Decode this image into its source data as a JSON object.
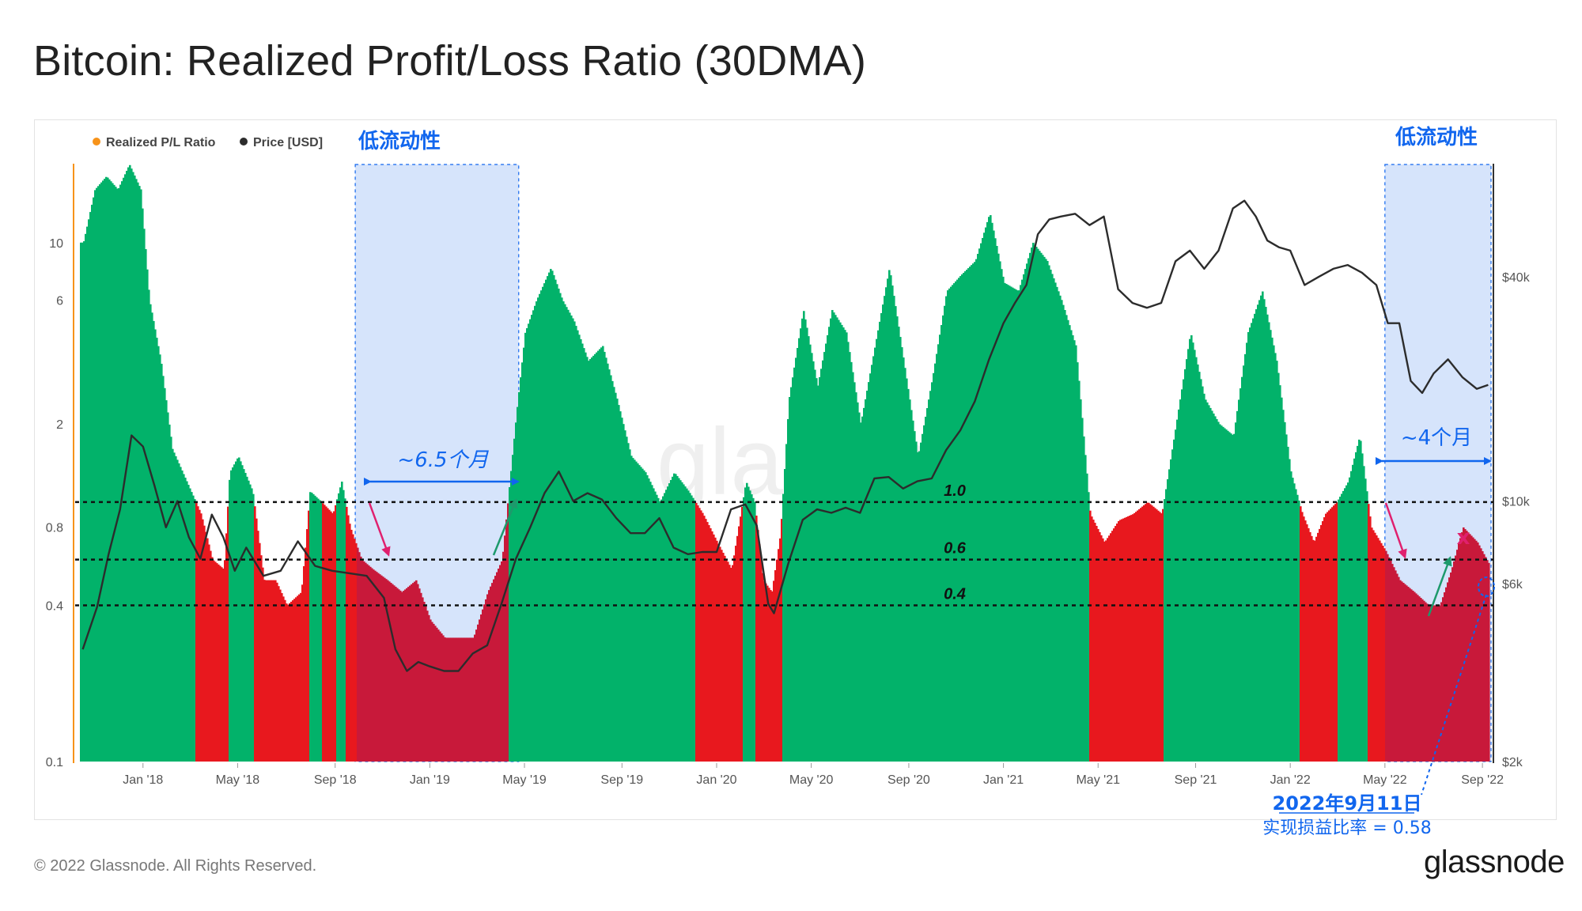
{
  "title": "Bitcoin: Realized Profit/Loss Ratio (30DMA)",
  "footer": {
    "copyright": "© 2022 Glassnode. All Rights Reserved.",
    "brand": "glassnode"
  },
  "colors": {
    "profit": "#02b26a",
    "loss_low": "#e8181e",
    "loss_window": "#c8193a",
    "price": "#2c2c2c",
    "window": "#d6e4fb",
    "annotation": "#1166ee",
    "legend_ratio": "#f7931a"
  },
  "chart_data": {
    "type": "area",
    "title": "Bitcoin: Realized Profit/Loss Ratio (30DMA)",
    "legend": [
      {
        "name": "Realized P/L Ratio",
        "color": "#f7931a"
      },
      {
        "name": "Price [USD]",
        "color": "#2c2c2c"
      }
    ],
    "x_ticks": [
      "Jan '18",
      "May '18",
      "Sep '18",
      "Jan '19",
      "May '19",
      "Sep '19",
      "Jan '20",
      "May '20",
      "Sep '20",
      "Jan '21",
      "May '21",
      "Sep '21",
      "Jan '22",
      "May '22",
      "Sep '22"
    ],
    "x_range": [
      "2017-10",
      "2022-09"
    ],
    "left_axis": {
      "scale": "log",
      "ticks": [
        "0.1",
        "0.4",
        "0.8",
        "2",
        "6",
        "10"
      ],
      "ylim": [
        0.1,
        20
      ]
    },
    "right_axis": {
      "scale": "log",
      "ticks": [
        "$2k",
        "$6k",
        "$10k",
        "$40k"
      ],
      "ylim": [
        2000,
        80000
      ]
    },
    "reference_lines": [
      {
        "value": 1.0,
        "label": "1.0"
      },
      {
        "value": 0.6,
        "label": "0.6"
      },
      {
        "value": 0.4,
        "label": "0.4"
      }
    ],
    "series": [
      {
        "name": "Realized P/L Ratio",
        "t": [
          2017.79,
          2017.83,
          2017.87,
          2017.91,
          2017.95,
          2017.99,
          2018.02,
          2018.06,
          2018.1,
          2018.15,
          2018.2,
          2018.24,
          2018.28,
          2018.3,
          2018.33,
          2018.38,
          2018.42,
          2018.46,
          2018.5,
          2018.55,
          2018.58,
          2018.62,
          2018.66,
          2018.69,
          2018.72,
          2018.76,
          2018.8,
          2018.85,
          2018.9,
          2018.95,
          2019.0,
          2019.05,
          2019.1,
          2019.15,
          2019.2,
          2019.25,
          2019.3,
          2019.33,
          2019.37,
          2019.42,
          2019.46,
          2019.5,
          2019.55,
          2019.6,
          2019.65,
          2019.7,
          2019.75,
          2019.8,
          2019.85,
          2019.9,
          2019.95,
          2020.0,
          2020.05,
          2020.1,
          2020.13,
          2020.16,
          2020.19,
          2020.22,
          2020.25,
          2020.3,
          2020.35,
          2020.4,
          2020.45,
          2020.5,
          2020.55,
          2020.6,
          2020.65,
          2020.7,
          2020.75,
          2020.8,
          2020.85,
          2020.9,
          2020.95,
          2021.0,
          2021.05,
          2021.1,
          2021.15,
          2021.2,
          2021.25,
          2021.3,
          2021.35,
          2021.4,
          2021.45,
          2021.5,
          2021.55,
          2021.6,
          2021.65,
          2021.7,
          2021.75,
          2021.8,
          2021.85,
          2021.9,
          2021.95,
          2022.0,
          2022.04,
          2022.08,
          2022.12,
          2022.16,
          2022.2,
          2022.24,
          2022.28,
          2022.33,
          2022.38,
          2022.43,
          2022.48,
          2022.52,
          2022.56,
          2022.6,
          2022.65,
          2022.69
        ],
        "values": [
          10,
          16,
          18,
          16,
          20,
          16,
          6,
          3.5,
          1.6,
          1.2,
          0.9,
          0.6,
          0.55,
          1.3,
          1.5,
          1.1,
          0.5,
          0.5,
          0.4,
          0.45,
          1.1,
          1.0,
          0.9,
          1.2,
          0.8,
          0.6,
          0.55,
          0.5,
          0.45,
          0.5,
          0.35,
          0.3,
          0.3,
          0.3,
          0.45,
          0.6,
          2.2,
          4.5,
          6,
          8,
          6,
          5,
          3.5,
          4,
          2.5,
          1.5,
          1.3,
          1.0,
          1.3,
          1.1,
          0.9,
          0.7,
          0.55,
          1.2,
          1.0,
          0.5,
          0.45,
          0.75,
          2.5,
          5.5,
          2.8,
          5.5,
          4.5,
          2.0,
          4.0,
          8.0,
          3.5,
          1.5,
          3.0,
          6.5,
          7.5,
          8.5,
          13,
          7,
          6.5,
          10,
          8.5,
          6,
          4,
          0.9,
          0.7,
          0.85,
          0.9,
          1.0,
          0.9,
          2.0,
          4.5,
          2.5,
          2.0,
          1.8,
          4.5,
          6.5,
          3.5,
          1.3,
          0.9,
          0.7,
          0.9,
          1.0,
          1.2,
          1.8,
          0.8,
          0.65,
          0.5,
          0.45,
          0.4,
          0.4,
          0.55,
          0.8,
          0.7,
          0.58
        ]
      },
      {
        "name": "Price [USD]",
        "t": [
          2017.79,
          2017.84,
          2017.88,
          2017.92,
          2017.96,
          2018.0,
          2018.04,
          2018.08,
          2018.12,
          2018.16,
          2018.2,
          2018.24,
          2018.28,
          2018.32,
          2018.36,
          2018.42,
          2018.48,
          2018.54,
          2018.6,
          2018.66,
          2018.72,
          2018.78,
          2018.84,
          2018.88,
          2018.92,
          2018.96,
          2019.0,
          2019.05,
          2019.1,
          2019.15,
          2019.2,
          2019.25,
          2019.3,
          2019.35,
          2019.4,
          2019.45,
          2019.5,
          2019.55,
          2019.6,
          2019.65,
          2019.7,
          2019.75,
          2019.8,
          2019.85,
          2019.9,
          2019.95,
          2020.0,
          2020.05,
          2020.1,
          2020.14,
          2020.18,
          2020.2,
          2020.25,
          2020.3,
          2020.35,
          2020.4,
          2020.45,
          2020.5,
          2020.55,
          2020.6,
          2020.65,
          2020.7,
          2020.75,
          2020.8,
          2020.85,
          2020.9,
          2020.95,
          2021.0,
          2021.04,
          2021.08,
          2021.12,
          2021.16,
          2021.2,
          2021.25,
          2021.3,
          2021.35,
          2021.4,
          2021.45,
          2021.5,
          2021.55,
          2021.6,
          2021.65,
          2021.7,
          2021.75,
          2021.8,
          2021.84,
          2021.88,
          2021.92,
          2021.96,
          2022.0,
          2022.05,
          2022.1,
          2022.15,
          2022.2,
          2022.25,
          2022.3,
          2022.34,
          2022.38,
          2022.42,
          2022.46,
          2022.5,
          2022.55,
          2022.6,
          2022.65,
          2022.69
        ],
        "values": [
          4000,
          5200,
          7200,
          9500,
          15000,
          14000,
          11000,
          8500,
          10000,
          8000,
          7000,
          9200,
          8000,
          6500,
          7500,
          6300,
          6500,
          7800,
          6700,
          6500,
          6400,
          6300,
          5500,
          4000,
          3500,
          3700,
          3600,
          3500,
          3500,
          3900,
          4100,
          5300,
          7000,
          8500,
          10500,
          12000,
          10000,
          10500,
          10100,
          9000,
          8200,
          8200,
          9000,
          7500,
          7200,
          7300,
          7300,
          9500,
          9800,
          8600,
          5300,
          5000,
          6800,
          8900,
          9500,
          9300,
          9600,
          9300,
          11500,
          11600,
          10800,
          11300,
          11500,
          13700,
          15500,
          18500,
          24000,
          30000,
          34000,
          38000,
          52000,
          57000,
          58000,
          59000,
          55000,
          58000,
          37000,
          34000,
          33000,
          34000,
          44000,
          47000,
          42000,
          47000,
          61000,
          64000,
          58000,
          50000,
          48000,
          47000,
          38000,
          40000,
          42000,
          43000,
          41000,
          38000,
          30000,
          30000,
          21000,
          19500,
          22000,
          24000,
          21500,
          20000,
          20500
        ]
      }
    ],
    "annotations": {
      "window_label_1": "低流动性",
      "window_label_2": "低流动性",
      "duration_1": "~6.5个月",
      "duration_2": "~4个月",
      "date_label": "2022年9月11日",
      "value_label": "实现损益比率 = 0.58",
      "cross_mark": "x",
      "watermark": "glassnode"
    }
  }
}
